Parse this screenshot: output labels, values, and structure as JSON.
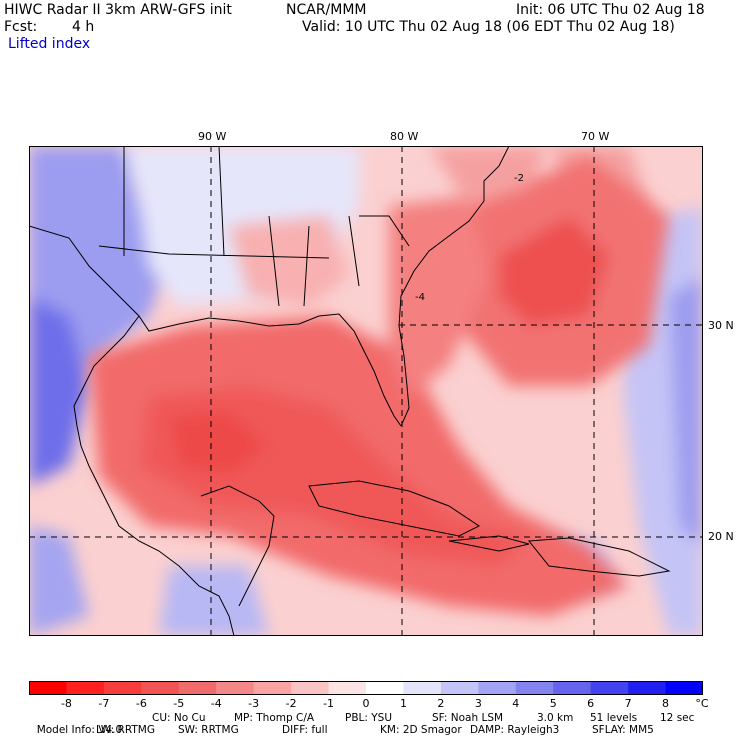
{
  "header": {
    "model_title": "HIWC Radar II 3km ARW-GFS init",
    "org": "NCAR/MMM",
    "init": "Init: 06 UTC Thu 02 Aug 18",
    "fcst_label": "Fcst:",
    "fcst_value": "4 h",
    "valid": "Valid: 10 UTC Thu 02 Aug 18 (06 EDT Thu 02 Aug 18)",
    "field": "Lifted index"
  },
  "map": {
    "lon_labels": [
      "90 W",
      "80 W",
      "70 W"
    ],
    "lat_labels": [
      "30 N",
      "20 N"
    ],
    "contour_labels": [
      "-2",
      "-4"
    ]
  },
  "colorbar": {
    "ticks": [
      "-8",
      "-7",
      "-6",
      "-5",
      "-4",
      "-3",
      "-2",
      "-1",
      "0",
      "1",
      "2",
      "3",
      "4",
      "5",
      "6",
      "7",
      "8"
    ],
    "unit": "°C",
    "colors": [
      "#ff0000",
      "#ff2020",
      "#f73c3c",
      "#f25454",
      "#f06c6c",
      "#f48888",
      "#f8a4a4",
      "#fbc4c4",
      "#fde4e4",
      "#ffffff",
      "#e4e4fb",
      "#c4c4f8",
      "#a4a4f4",
      "#8484f0",
      "#6464ee",
      "#4444ee",
      "#2020f0",
      "#0000ff"
    ]
  },
  "model_info": {
    "row1": [
      "Model Info: V4.0",
      "CU: No Cu",
      "MP: Thomp C/A",
      "PBL: YSU",
      "SF: Noah LSM",
      "3.0 km",
      "51 levels",
      "12 sec"
    ],
    "row2": [
      "LW: RRTMG",
      "SW: RRTMG",
      "DIFF: full",
      "KM: 2D Smagor",
      "DAMP: Rayleigh3",
      "SFLAY: MM5"
    ]
  }
}
